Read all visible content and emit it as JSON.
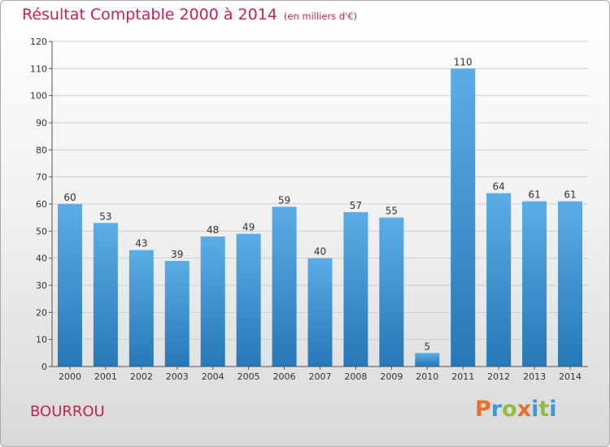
{
  "title": "Résultat Comptable 2000 à 2014",
  "unit": "(en milliers d'€)",
  "location": "BOURROU",
  "brand": {
    "letters": [
      "P",
      "r",
      "o",
      "x",
      "i",
      "t",
      "i"
    ],
    "colors": [
      "#e8702a",
      "#3a9ad9",
      "#8fbf3f",
      "#e8702a",
      "#3a9ad9",
      "#8fbf3f",
      "#3a9ad9"
    ]
  },
  "colors": {
    "title": "#c8234f",
    "bar_top": "#5aade6",
    "bar_bottom": "#2678b6"
  },
  "chart_data": {
    "type": "bar",
    "categories": [
      "2000",
      "2001",
      "2002",
      "2003",
      "2004",
      "2005",
      "2006",
      "2007",
      "2008",
      "2009",
      "2010",
      "2011",
      "2012",
      "2013",
      "2014"
    ],
    "values": [
      60,
      53,
      43,
      39,
      48,
      49,
      59,
      40,
      57,
      55,
      5,
      110,
      64,
      61,
      61
    ],
    "yticks": [
      0,
      10,
      20,
      30,
      40,
      50,
      60,
      70,
      80,
      90,
      100,
      110,
      120
    ],
    "ylim": [
      0,
      120
    ],
    "grid": true,
    "legend": "none"
  }
}
